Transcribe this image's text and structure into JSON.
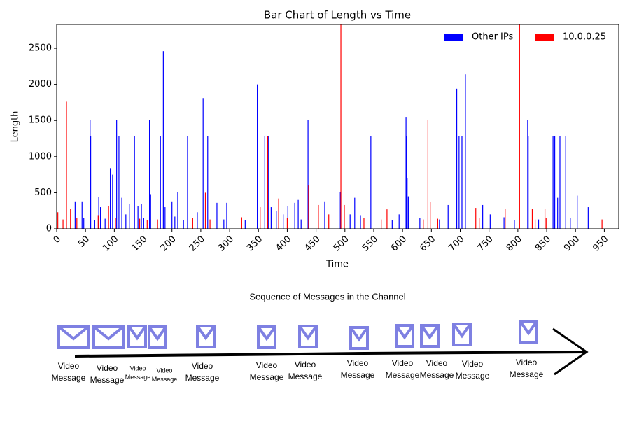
{
  "chart_data": {
    "type": "bar",
    "title": "Bar Chart of Length vs Time",
    "xlabel": "Time",
    "ylabel": "Length",
    "xlim": [
      0,
      975
    ],
    "ylim": [
      0,
      2830
    ],
    "xticks": [
      0,
      50,
      100,
      150,
      200,
      250,
      300,
      350,
      400,
      450,
      500,
      550,
      600,
      650,
      700,
      750,
      800,
      850,
      900,
      950
    ],
    "yticks": [
      0,
      500,
      1000,
      1500,
      2000,
      2500
    ],
    "legend": "upper right",
    "series": [
      {
        "name": "Other IPs",
        "color": "#0000ff",
        "x": [
          32,
          44,
          58,
          59,
          73,
          76,
          93,
          97,
          104,
          108,
          113,
          126,
          135,
          141,
          147,
          161,
          163,
          180,
          185,
          188,
          200,
          210,
          227,
          254,
          262,
          278,
          295,
          348,
          361,
          367,
          372,
          401,
          413,
          419,
          436,
          465,
          492,
          517,
          545,
          606,
          607,
          608,
          610,
          679,
          693,
          694,
          698,
          703,
          709,
          739,
          817,
          818,
          861,
          864,
          869,
          873,
          883,
          903,
          922,
          47,
          66,
          84,
          120,
          151,
          205,
          220,
          244,
          290,
          327,
          381,
          393,
          424,
          454,
          509,
          527,
          582,
          594,
          630,
          664,
          752,
          776,
          794,
          836,
          891
        ],
        "values": [
          380,
          380,
          1510,
          1280,
          440,
          300,
          840,
          750,
          1510,
          1280,
          430,
          340,
          1280,
          310,
          340,
          1510,
          480,
          1280,
          2460,
          300,
          380,
          510,
          1280,
          1810,
          1280,
          360,
          360,
          2000,
          1280,
          1280,
          300,
          310,
          360,
          400,
          1510,
          380,
          510,
          430,
          1280,
          1550,
          1280,
          700,
          450,
          330,
          400,
          1940,
          1280,
          1280,
          2140,
          330,
          1510,
          1280,
          1280,
          1280,
          430,
          1280,
          1280,
          460,
          300,
          150,
          120,
          140,
          200,
          150,
          170,
          120,
          230,
          130,
          120,
          250,
          200,
          130,
          120,
          200,
          180,
          120,
          200,
          150,
          130,
          200,
          160,
          120,
          130,
          150
        ]
      },
      {
        "name": "10.0.0.25",
        "color": "#ff0000",
        "x": [
          2,
          17,
          24,
          90,
          157,
          258,
          366,
          385,
          437,
          493,
          499,
          644,
          648,
          803,
          847,
          825,
          727,
          573,
          454,
          11,
          35,
          72,
          102,
          144,
          175,
          236,
          266,
          321,
          353,
          400,
          472,
          533,
          563,
          636,
          661,
          733,
          778,
          830,
          849,
          946
        ],
        "values": [
          230,
          1760,
          280,
          320,
          120,
          500,
          1280,
          420,
          600,
          2900,
          330,
          1510,
          370,
          2900,
          280,
          280,
          290,
          270,
          330,
          130,
          150,
          180,
          150,
          140,
          130,
          150,
          130,
          160,
          300,
          150,
          200,
          150,
          130,
          130,
          140,
          150,
          280,
          130,
          150,
          130
        ]
      }
    ]
  },
  "diagram": {
    "title": "Sequence of Messages in the Channel",
    "messages": [
      {
        "label": [
          "Video",
          "Message"
        ]
      },
      {
        "label": [
          "Video",
          "Message"
        ]
      },
      {
        "label": [
          "Video",
          "Message"
        ]
      },
      {
        "label": [
          "Video",
          "Message"
        ]
      },
      {
        "label": [
          "Video",
          "Message"
        ]
      },
      {
        "label": [
          "Video",
          "Message"
        ]
      },
      {
        "label": [
          "Video",
          "Message"
        ]
      },
      {
        "label": [
          "Video",
          "Message"
        ]
      },
      {
        "label": [
          "Video",
          "Message"
        ]
      },
      {
        "label": [
          "Video",
          "Message"
        ]
      },
      {
        "label": [
          "Video",
          "Message"
        ]
      },
      {
        "label": [
          "Video",
          "Message"
        ]
      }
    ]
  }
}
